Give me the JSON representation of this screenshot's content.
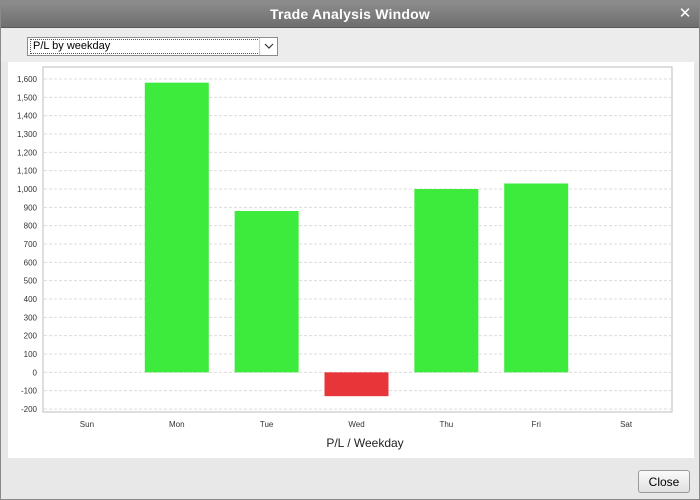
{
  "window": {
    "title": "Trade Analysis Window",
    "close_glyph": "✕"
  },
  "toolbar": {
    "report_select": {
      "selected": "P/L by weekday"
    }
  },
  "chart_data": {
    "type": "bar",
    "categories": [
      "Sun",
      "Mon",
      "Tue",
      "Wed",
      "Thu",
      "Fri",
      "Sat"
    ],
    "values": [
      0,
      1580,
      880,
      -130,
      1000,
      1030,
      0
    ],
    "xlabel": "P/L / Weekday",
    "ylabel": "",
    "ylim": [
      -200,
      1600
    ],
    "yticks": [
      -200,
      -100,
      0,
      100,
      200,
      300,
      400,
      500,
      600,
      700,
      800,
      900,
      1000,
      1100,
      1200,
      1300,
      1400,
      1500,
      1600
    ],
    "ytick_labels": [
      "-200",
      "-100",
      "0",
      "100",
      "200",
      "300",
      "400",
      "500",
      "600",
      "700",
      "800",
      "900",
      "1,000",
      "1,100",
      "1,200",
      "1,300",
      "1,400",
      "1,500",
      "1,600"
    ],
    "grid": true,
    "colors": {
      "positive": "#3deb3d",
      "negative": "#e8353a",
      "grid": "#dcdcdc"
    }
  },
  "footer": {
    "close_label": "Close"
  }
}
